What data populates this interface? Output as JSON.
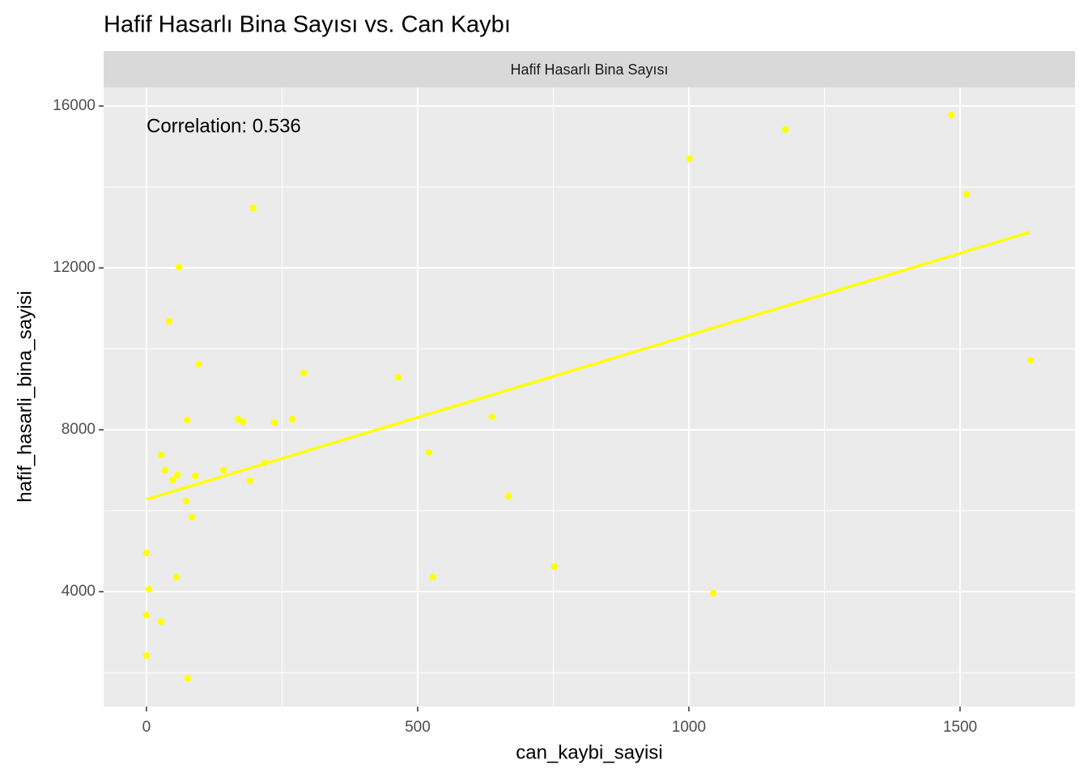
{
  "chart_data": {
    "type": "scatter",
    "title": "Hafif Hasarlı Bina Sayısı vs. Can Kaybı",
    "facet_label": "Hafif Hasarlı Bina Sayısı",
    "x_label": "can_kaybi_sayisi",
    "y_label": "hafif_hasarli_bina_sayisi",
    "annotation": "Correlation: 0.536",
    "color": "#ffff00",
    "grid": true,
    "xlim": [
      -79,
      1712
    ],
    "ylim": [
      1160,
      16460
    ],
    "xticks": [
      0,
      500,
      1000,
      1500
    ],
    "yticks": [
      4000,
      8000,
      12000,
      16000
    ],
    "x_minor_ticks": [
      250,
      750,
      1250
    ],
    "y_minor_ticks": [
      2000,
      6000,
      10000,
      14000
    ],
    "x": [
      0,
      4.5,
      0,
      0,
      27,
      76,
      55,
      27,
      34,
      48,
      57,
      73,
      84,
      90,
      75,
      96,
      42,
      60,
      197,
      142,
      169,
      178,
      191,
      218,
      236,
      269,
      290,
      464,
      521,
      528,
      637,
      667,
      752,
      1001,
      1045,
      1178,
      1484,
      1512,
      1630
    ],
    "y": [
      4960,
      4060,
      3420,
      2420,
      3260,
      1860,
      4360,
      7380,
      7000,
      6760,
      6880,
      6240,
      5840,
      6860,
      8240,
      9620,
      10680,
      12020,
      13480,
      7000,
      8260,
      8200,
      6740,
      7180,
      8180,
      8260,
      9400,
      9300,
      7440,
      4360,
      8320,
      6360,
      4620,
      14700,
      3960,
      15420,
      15780,
      13820,
      9720
    ],
    "trend": {
      "x": [
        0,
        1628
      ],
      "y": [
        6280,
        12880
      ]
    }
  }
}
